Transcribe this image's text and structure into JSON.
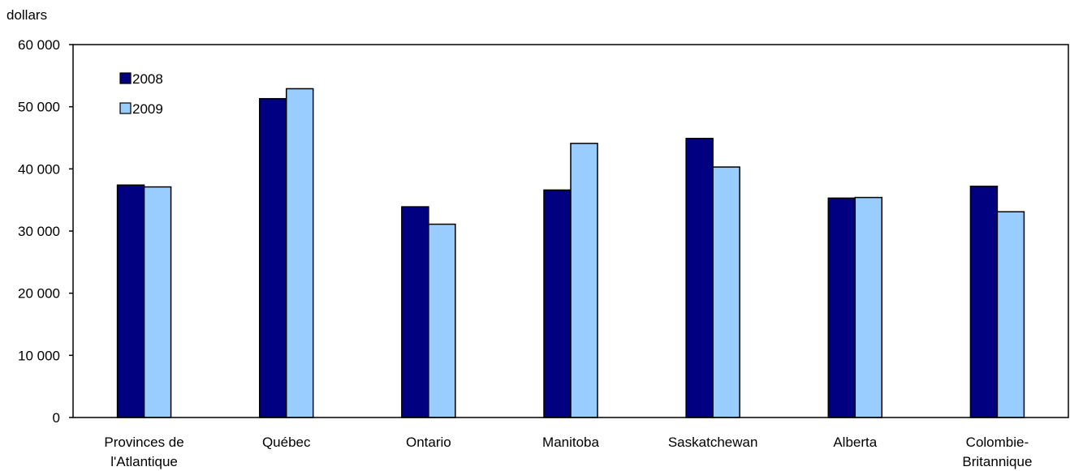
{
  "chart_data": {
    "type": "bar",
    "ylabel": "dollars",
    "ylim": [
      0,
      60000
    ],
    "yticks": [
      0,
      10000,
      20000,
      30000,
      40000,
      50000,
      60000
    ],
    "ytick_labels": [
      "0",
      "10 000",
      "20 000",
      "30 000",
      "40 000",
      "50 000",
      "60 000"
    ],
    "categories": [
      [
        "Provinces de",
        "l'Atlantique"
      ],
      [
        "Québec"
      ],
      [
        "Ontario"
      ],
      [
        "Manitoba"
      ],
      [
        "Saskatchewan"
      ],
      [
        "Alberta"
      ],
      [
        "Colombie-",
        "Britannique"
      ]
    ],
    "series": [
      {
        "name": "2008",
        "color": "#000080",
        "values": [
          37400,
          51300,
          33900,
          36600,
          44900,
          35300,
          37200
        ]
      },
      {
        "name": "2009",
        "color": "#99ccff",
        "values": [
          37100,
          52900,
          31100,
          44100,
          40300,
          35400,
          33100
        ]
      }
    ],
    "legend": "top-left",
    "grid": false
  }
}
